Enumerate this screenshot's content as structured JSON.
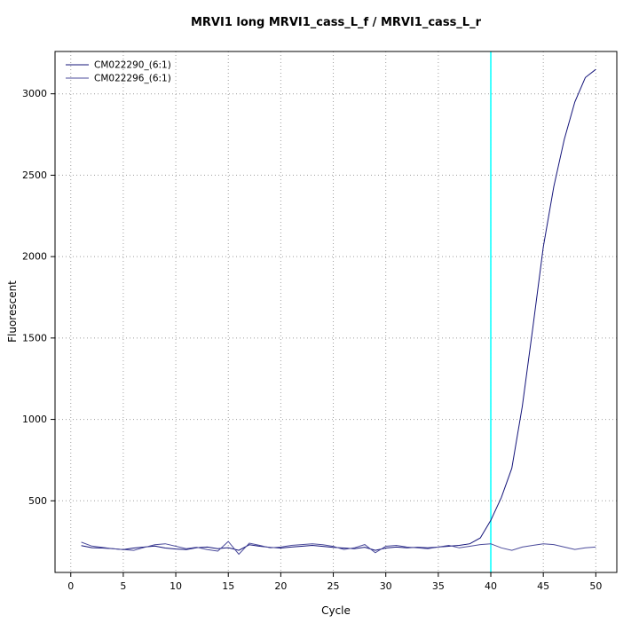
{
  "chart_data": {
    "type": "line",
    "title": "MRVI1 long MRVI1_cass_L_f / MRVI1_cass_L_r",
    "xlabel": "Cycle",
    "ylabel": "Fluorescent",
    "xlim": [
      -1.5,
      52
    ],
    "ylim": [
      60,
      3260
    ],
    "x_ticks": [
      0,
      5,
      10,
      15,
      20,
      25,
      30,
      35,
      40,
      45,
      50
    ],
    "y_ticks": [
      500,
      1000,
      1500,
      2000,
      2500,
      3000
    ],
    "grid": "dotted",
    "grid_color": "#9e9e9e",
    "threshold_line": {
      "x": 40,
      "color": "#00ffff"
    },
    "legend_position": "top-left",
    "x": [
      1,
      2,
      3,
      4,
      5,
      6,
      7,
      8,
      9,
      10,
      11,
      12,
      13,
      14,
      15,
      16,
      17,
      18,
      19,
      20,
      21,
      22,
      23,
      24,
      25,
      26,
      27,
      28,
      29,
      30,
      31,
      32,
      33,
      34,
      35,
      36,
      37,
      38,
      39,
      40,
      41,
      42,
      43,
      44,
      45,
      46,
      47,
      48,
      49,
      50
    ],
    "series": [
      {
        "name": "CM022290_(6:1)",
        "color": "#14147a",
        "values": [
          225,
          212,
          210,
          206,
          200,
          210,
          216,
          222,
          210,
          204,
          200,
          212,
          216,
          206,
          212,
          196,
          230,
          221,
          214,
          210,
          216,
          221,
          226,
          220,
          214,
          210,
          206,
          215,
          196,
          210,
          216,
          211,
          215,
          211,
          216,
          221,
          226,
          236,
          272,
          380,
          520,
          700,
          1080,
          1560,
          2060,
          2430,
          2720,
          2950,
          3100,
          3150
        ]
      },
      {
        "name": "CM022296_(6:1)",
        "color": "#4b4b9b",
        "values": [
          246,
          222,
          214,
          206,
          200,
          196,
          214,
          230,
          236,
          221,
          206,
          215,
          200,
          191,
          250,
          172,
          240,
          226,
          211,
          216,
          226,
          231,
          236,
          230,
          220,
          201,
          211,
          231,
          181,
          221,
          226,
          216,
          211,
          206,
          216,
          226,
          211,
          221,
          231,
          236,
          211,
          196,
          216,
          226,
          236,
          231,
          216,
          201,
          211,
          216
        ]
      }
    ]
  }
}
